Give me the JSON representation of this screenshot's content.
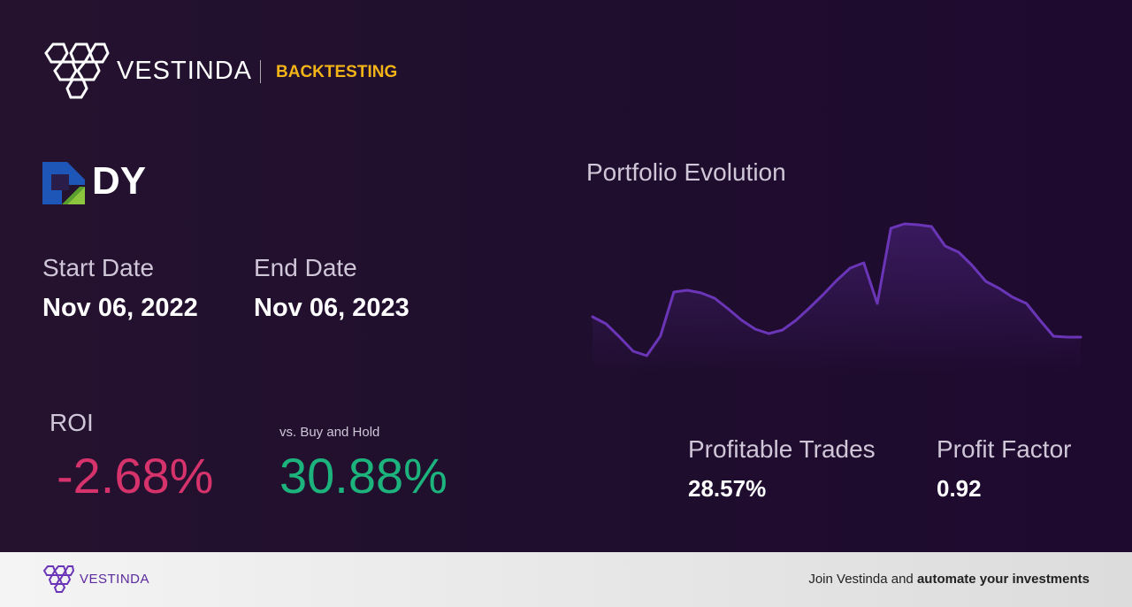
{
  "header": {
    "brand": "VESTINDA",
    "section": "BACKTESTING"
  },
  "ticker": "DY",
  "start_date": {
    "label": "Start Date",
    "value": "Nov 06, 2022"
  },
  "end_date": {
    "label": "End Date",
    "value": "Nov 06, 2023"
  },
  "roi": {
    "label": "ROI",
    "value": "-2.68%"
  },
  "buy_and_hold": {
    "label": "vs. Buy and Hold",
    "value": "30.88%"
  },
  "profitable_trades": {
    "label": "Profitable Trades",
    "value": "28.57%"
  },
  "profit_factor": {
    "label": "Profit Factor",
    "value": "0.92"
  },
  "chart_data": {
    "type": "line",
    "title": "Portfolio Evolution",
    "values": [
      62,
      54,
      39,
      23,
      18,
      40,
      90,
      92,
      89,
      83,
      71,
      58,
      48,
      43,
      47,
      58,
      72,
      87,
      103,
      117,
      123,
      77,
      162,
      167,
      166,
      164,
      142,
      135,
      120,
      102,
      94,
      84,
      77,
      58,
      40,
      39,
      39
    ],
    "ylim": [
      0,
      180
    ],
    "color": "#6b35b8"
  },
  "footer": {
    "brand": "VESTINDA",
    "text": "Join Vestinda and",
    "emphasis": "automate your investments"
  }
}
